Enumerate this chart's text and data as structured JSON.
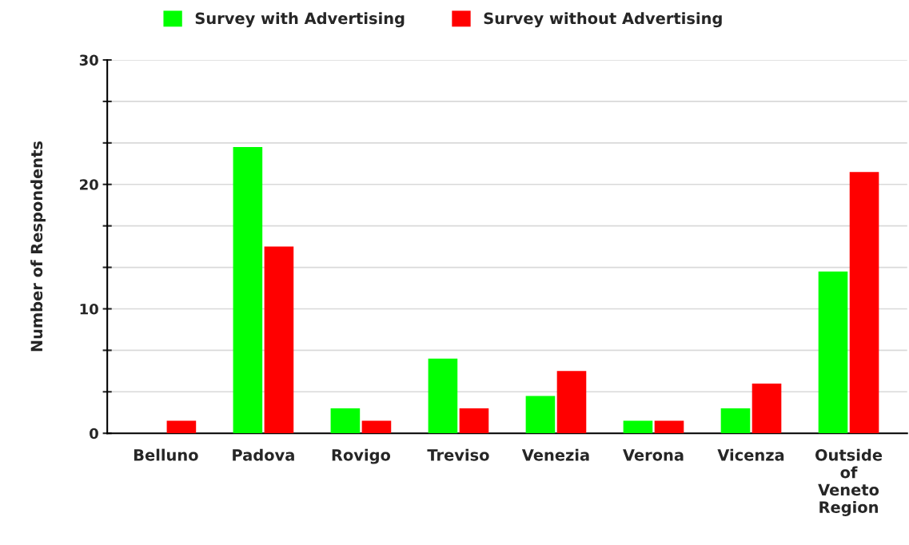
{
  "chart_data": {
    "type": "bar",
    "ylabel": "Number of Respondents",
    "categories": [
      "Belluno",
      "Padova",
      "Rovigo",
      "Treviso",
      "Venezia",
      "Verona",
      "Vicenza",
      "Outside\nof\nVeneto\nRegion"
    ],
    "series": [
      {
        "name": "Survey with Advertising",
        "color": "#00ff00",
        "values": [
          null,
          23,
          2,
          6,
          3,
          1,
          2,
          13
        ]
      },
      {
        "name": "Survey without Advertising",
        "color": "#ff0000",
        "values": [
          1,
          15,
          1,
          2,
          5,
          1,
          4,
          21
        ]
      }
    ],
    "ylim": [
      0,
      30
    ],
    "yticks": [
      0,
      {
        "value": 3.333,
        "label": null
      },
      {
        "value": 6.667,
        "label": null
      },
      10,
      {
        "value": 13.333,
        "label": null
      },
      {
        "value": 16.667,
        "label": null
      },
      20,
      {
        "value": 23.333,
        "label": null
      },
      {
        "value": 26.667,
        "label": null
      },
      30
    ],
    "grid": "y",
    "legend": "top"
  }
}
